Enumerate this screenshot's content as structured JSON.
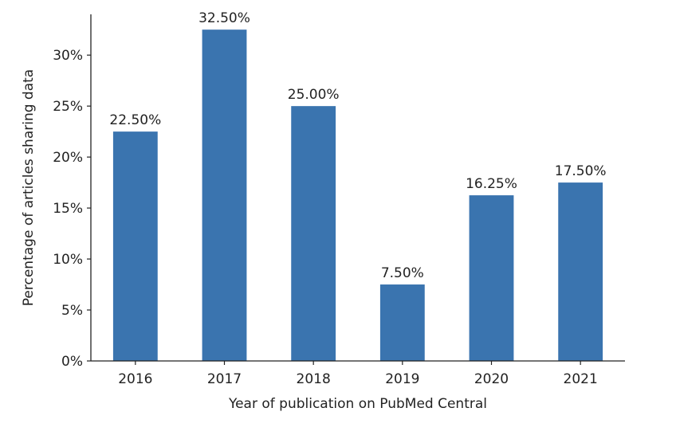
{
  "chart_data": {
    "type": "bar",
    "categories": [
      "2016",
      "2017",
      "2018",
      "2019",
      "2020",
      "2021"
    ],
    "values": [
      22.5,
      32.5,
      25.0,
      7.5,
      16.25,
      17.5
    ],
    "data_labels": [
      "22.50%",
      "32.50%",
      "25.00%",
      "7.50%",
      "16.25%",
      "17.50%"
    ],
    "title": "",
    "xlabel": "Year of publication on PubMed Central",
    "ylabel": "Percentage of articles sharing data",
    "ylim": [
      0,
      34
    ],
    "yticks": [
      0,
      5,
      10,
      15,
      20,
      25,
      30
    ],
    "ytick_labels": [
      "0%",
      "5%",
      "10%",
      "15%",
      "20%",
      "25%",
      "30%"
    ],
    "grid": false,
    "legend": "none",
    "bar_color": "#3a74af"
  }
}
